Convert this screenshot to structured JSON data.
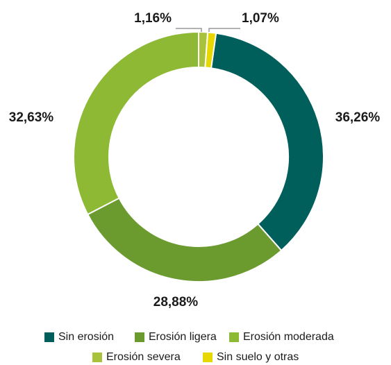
{
  "chart_data": {
    "type": "donut",
    "categories": [
      "Sin erosión",
      "Erosión ligera",
      "Erosión moderada",
      "Erosión severa",
      "Sin suelo y otras"
    ],
    "values": [
      36.26,
      28.88,
      32.63,
      1.16,
      1.07
    ],
    "value_labels": [
      "36,26%",
      "28,88%",
      "32,63%",
      "1,16%",
      "1,07%"
    ],
    "colors": [
      "#005f5a",
      "#6b9a2f",
      "#8db934",
      "#a9c23c",
      "#e6d800"
    ],
    "legend": "bottom"
  }
}
